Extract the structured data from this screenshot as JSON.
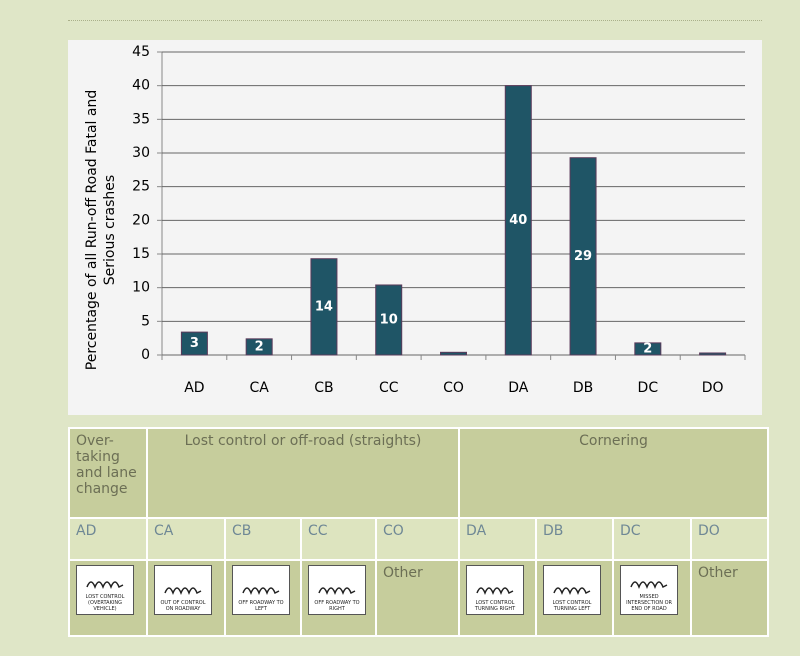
{
  "chart_data": {
    "type": "bar",
    "ylabel": [
      "Percentage of all Run-off Road Fatal and",
      "Serious crashes"
    ],
    "categories": [
      "AD",
      "CA",
      "CB",
      "CC",
      "CO",
      "DA",
      "DB",
      "DC",
      "DO"
    ],
    "values": [
      3.4,
      2.4,
      14.3,
      10.4,
      0.4,
      40,
      29.3,
      1.8,
      0.3
    ],
    "value_labels": [
      "3",
      "2",
      "14",
      "10",
      null,
      "40",
      "29",
      "2",
      null
    ],
    "color": "#1f5566",
    "ylim": [
      0,
      45
    ],
    "yticks": [
      0,
      5,
      10,
      15,
      20,
      25,
      30,
      35,
      40,
      45
    ],
    "grid": true
  },
  "table": {
    "header": [
      "Over-taking and lane change",
      "Lost control or off-road (straights)",
      "Cornering"
    ],
    "codes": [
      "AD",
      "CA",
      "CB",
      "CC",
      "CO",
      "DA",
      "DB",
      "DC",
      "DO"
    ],
    "icons": [
      "LOST CONTROL (OVERTAKING VEHICLE)",
      "OUT OF CONTROL ON ROADWAY",
      "OFF ROADWAY TO LEFT",
      "OFF ROADWAY TO RIGHT",
      "Other",
      "LOST CONTROL TURNING RIGHT",
      "LOST CONTROL TURNING LEFT",
      "MISSED INTERSECTION OR END OF ROAD",
      "Other"
    ]
  }
}
